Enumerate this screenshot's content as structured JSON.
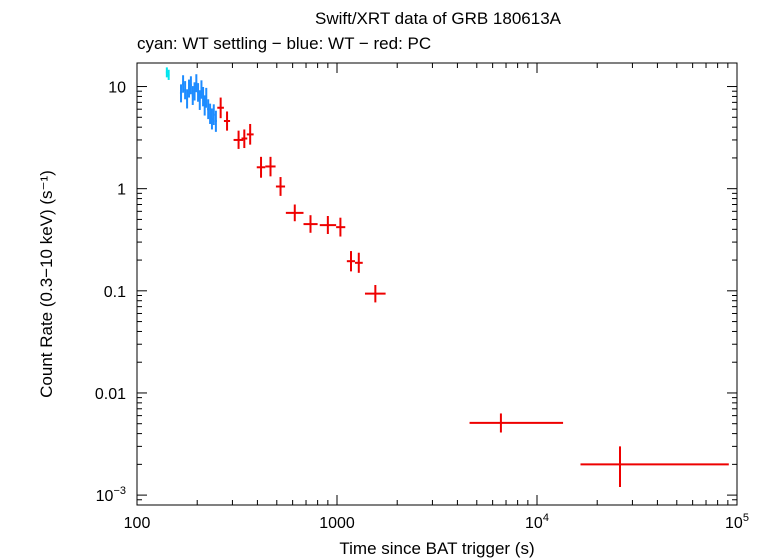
{
  "chart_data": {
    "type": "scatter",
    "title": "Swift/XRT data of GRB 180613A",
    "subtitle": "cyan: WT settling − blue: WT − red: PC",
    "xlabel": "Time since BAT trigger (s)",
    "ylabel": "Count Rate (0.3−10 keV) (s⁻¹)",
    "xscale": "log",
    "yscale": "log",
    "xlim": [
      100,
      100000
    ],
    "ylim": [
      0.0008,
      17
    ],
    "x_ticks": [
      {
        "value": 100,
        "label": "100",
        "sup": ""
      },
      {
        "value": 1000,
        "label": "1000",
        "sup": ""
      },
      {
        "value": 10000,
        "label": "10",
        "sup": "4"
      },
      {
        "value": 100000,
        "label": "10",
        "sup": "5"
      }
    ],
    "y_ticks": [
      {
        "value": 10,
        "label": "10",
        "sup": ""
      },
      {
        "value": 1,
        "label": "1",
        "sup": ""
      },
      {
        "value": 0.1,
        "label": "0.1",
        "sup": ""
      },
      {
        "value": 0.01,
        "label": "0.01",
        "sup": ""
      },
      {
        "value": 0.001,
        "label": "10",
        "sup": "−3"
      }
    ],
    "series": [
      {
        "name": "WT settling",
        "color": "#00e5ee",
        "points": [
          {
            "x": 141,
            "xlo": 139.5,
            "xhi": 142.5,
            "y": 13.8,
            "ylo": 12.3,
            "yhi": 15.4
          },
          {
            "x": 144,
            "xlo": 142.5,
            "xhi": 145.5,
            "y": 13.0,
            "ylo": 11.6,
            "yhi": 14.6
          }
        ]
      },
      {
        "name": "WT",
        "color": "#1e8cff",
        "points": [
          {
            "x": 166,
            "xlo": 164,
            "xhi": 168,
            "y": 8.6,
            "ylo": 7.0,
            "yhi": 10.5
          },
          {
            "x": 170,
            "xlo": 168,
            "xhi": 172,
            "y": 10.6,
            "ylo": 8.7,
            "yhi": 12.9
          },
          {
            "x": 174,
            "xlo": 172,
            "xhi": 176,
            "y": 9.2,
            "ylo": 7.5,
            "yhi": 11.3
          },
          {
            "x": 178,
            "xlo": 176,
            "xhi": 180,
            "y": 7.6,
            "ylo": 6.1,
            "yhi": 9.4
          },
          {
            "x": 182,
            "xlo": 180,
            "xhi": 184,
            "y": 9.6,
            "ylo": 7.8,
            "yhi": 11.7
          },
          {
            "x": 186,
            "xlo": 184,
            "xhi": 188,
            "y": 10.3,
            "ylo": 8.4,
            "yhi": 12.6
          },
          {
            "x": 190,
            "xlo": 188,
            "xhi": 192,
            "y": 8.2,
            "ylo": 6.6,
            "yhi": 10.1
          },
          {
            "x": 194,
            "xlo": 192,
            "xhi": 196,
            "y": 9.0,
            "ylo": 7.3,
            "yhi": 11.0
          },
          {
            "x": 198,
            "xlo": 196,
            "xhi": 200,
            "y": 10.8,
            "ylo": 8.8,
            "yhi": 13.2
          },
          {
            "x": 202,
            "xlo": 200,
            "xhi": 204,
            "y": 8.8,
            "ylo": 7.1,
            "yhi": 10.8
          },
          {
            "x": 206,
            "xlo": 204,
            "xhi": 208,
            "y": 7.4,
            "ylo": 5.9,
            "yhi": 9.2
          },
          {
            "x": 210,
            "xlo": 208,
            "xhi": 212,
            "y": 9.4,
            "ylo": 7.6,
            "yhi": 11.5
          },
          {
            "x": 214,
            "xlo": 212,
            "xhi": 216,
            "y": 8.0,
            "ylo": 6.4,
            "yhi": 9.9
          },
          {
            "x": 218,
            "xlo": 216,
            "xhi": 220,
            "y": 6.6,
            "ylo": 5.2,
            "yhi": 8.2
          },
          {
            "x": 222,
            "xlo": 220,
            "xhi": 224,
            "y": 7.8,
            "ylo": 6.2,
            "yhi": 9.7
          },
          {
            "x": 227,
            "xlo": 224,
            "xhi": 230,
            "y": 6.0,
            "ylo": 4.8,
            "yhi": 7.5
          },
          {
            "x": 232,
            "xlo": 230,
            "xhi": 234,
            "y": 5.4,
            "ylo": 4.3,
            "yhi": 6.8
          },
          {
            "x": 237,
            "xlo": 234,
            "xhi": 240,
            "y": 4.8,
            "ylo": 3.8,
            "yhi": 6.1
          },
          {
            "x": 242,
            "xlo": 240,
            "xhi": 245,
            "y": 5.3,
            "ylo": 4.2,
            "yhi": 6.7
          },
          {
            "x": 248,
            "xlo": 245,
            "xhi": 251,
            "y": 4.6,
            "ylo": 3.6,
            "yhi": 5.8
          }
        ]
      },
      {
        "name": "PC",
        "color": "#ee0000",
        "points": [
          {
            "x": 262,
            "xlo": 252,
            "xhi": 272,
            "y": 6.2,
            "ylo": 4.9,
            "yhi": 7.8
          },
          {
            "x": 282,
            "xlo": 272,
            "xhi": 292,
            "y": 4.6,
            "ylo": 3.7,
            "yhi": 5.7
          },
          {
            "x": 322,
            "xlo": 304,
            "xhi": 340,
            "y": 3.0,
            "ylo": 2.45,
            "yhi": 3.7
          },
          {
            "x": 344,
            "xlo": 333,
            "xhi": 356,
            "y": 3.1,
            "ylo": 2.5,
            "yhi": 3.8
          },
          {
            "x": 368,
            "xlo": 354,
            "xhi": 383,
            "y": 3.4,
            "ylo": 2.7,
            "yhi": 4.3
          },
          {
            "x": 417,
            "xlo": 397,
            "xhi": 438,
            "y": 1.62,
            "ylo": 1.28,
            "yhi": 2.05
          },
          {
            "x": 465,
            "xlo": 438,
            "xhi": 493,
            "y": 1.65,
            "ylo": 1.32,
            "yhi": 2.05
          },
          {
            "x": 522,
            "xlo": 495,
            "xhi": 550,
            "y": 1.05,
            "ylo": 0.85,
            "yhi": 1.3
          },
          {
            "x": 615,
            "xlo": 555,
            "xhi": 680,
            "y": 0.58,
            "ylo": 0.48,
            "yhi": 0.7
          },
          {
            "x": 737,
            "xlo": 680,
            "xhi": 800,
            "y": 0.45,
            "ylo": 0.37,
            "yhi": 0.55
          },
          {
            "x": 900,
            "xlo": 820,
            "xhi": 990,
            "y": 0.44,
            "ylo": 0.36,
            "yhi": 0.54
          },
          {
            "x": 1040,
            "xlo": 990,
            "xhi": 1100,
            "y": 0.42,
            "ylo": 0.34,
            "yhi": 0.52
          },
          {
            "x": 1175,
            "xlo": 1120,
            "xhi": 1230,
            "y": 0.195,
            "ylo": 0.155,
            "yhi": 0.245
          },
          {
            "x": 1285,
            "xlo": 1230,
            "xhi": 1345,
            "y": 0.188,
            "ylo": 0.15,
            "yhi": 0.236
          },
          {
            "x": 1555,
            "xlo": 1380,
            "xhi": 1750,
            "y": 0.094,
            "ylo": 0.077,
            "yhi": 0.114
          },
          {
            "x": 6600,
            "xlo": 4600,
            "xhi": 13500,
            "y": 0.0051,
            "ylo": 0.0041,
            "yhi": 0.0063
          },
          {
            "x": 26000,
            "xlo": 16500,
            "xhi": 91000,
            "y": 0.002,
            "ylo": 0.0012,
            "yhi": 0.003
          }
        ]
      }
    ]
  }
}
